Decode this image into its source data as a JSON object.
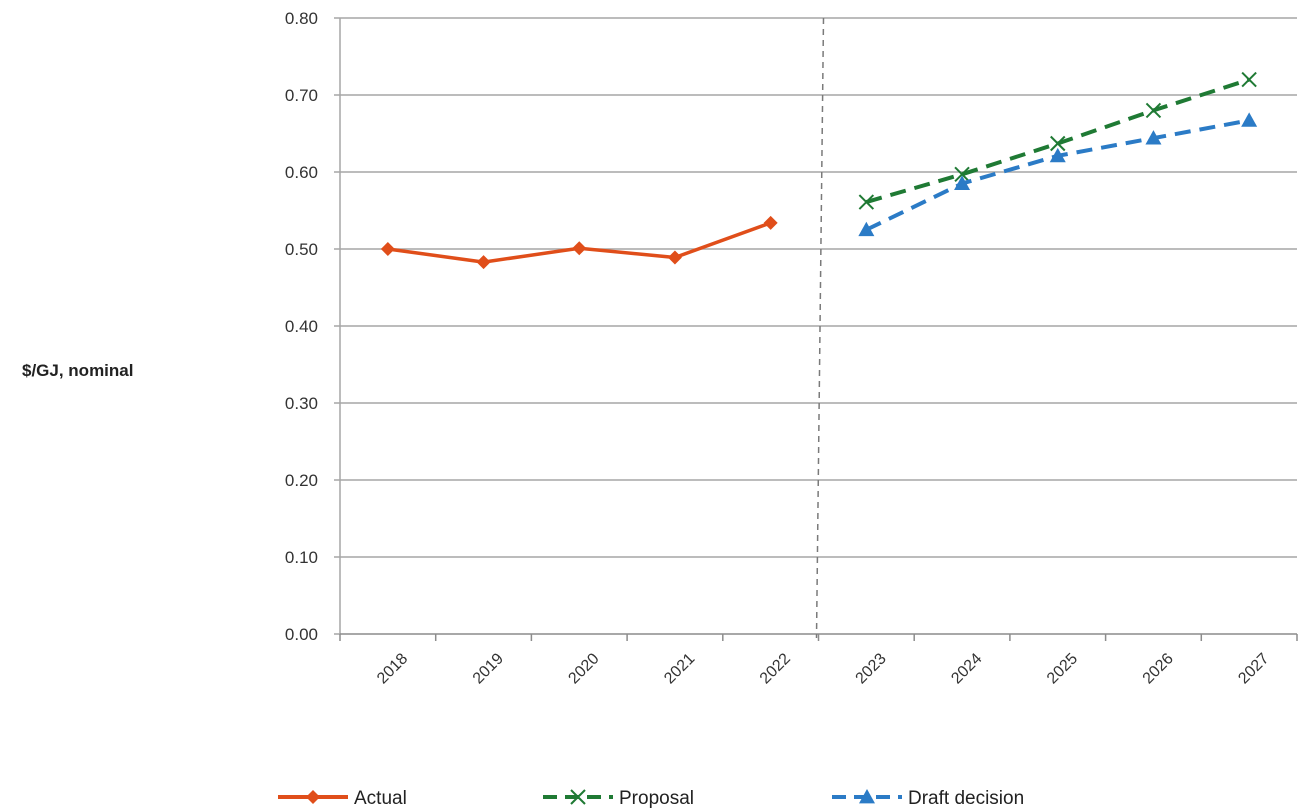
{
  "chart_data": {
    "type": "line",
    "title": "",
    "xlabel": "",
    "ylabel": "$/GJ, nominal",
    "categories": [
      "2018",
      "2019",
      "2020",
      "2021",
      "2022",
      "2023",
      "2024",
      "2025",
      "2026",
      "2027"
    ],
    "ylim": [
      0,
      0.8
    ],
    "yticks": [
      "0.00",
      "0.10",
      "0.20",
      "0.30",
      "0.40",
      "0.50",
      "0.60",
      "0.70",
      "0.80"
    ],
    "grid": "horizontal",
    "divider_between": [
      "2022",
      "2023"
    ],
    "legend_position": "bottom",
    "series": [
      {
        "name": "Actual",
        "color": "#e04e1a",
        "marker": "diamond",
        "line_style": "solid",
        "values": [
          0.5,
          0.483,
          0.501,
          0.489,
          0.534,
          null,
          null,
          null,
          null,
          null
        ]
      },
      {
        "name": "Proposal",
        "color": "#1f7a34",
        "marker": "x",
        "line_style": "dashed",
        "values": [
          null,
          null,
          null,
          null,
          null,
          0.561,
          0.597,
          0.637,
          0.68,
          0.72
        ]
      },
      {
        "name": "Draft decision",
        "color": "#2b7bc6",
        "marker": "triangle",
        "line_style": "dashed",
        "values": [
          null,
          null,
          null,
          null,
          null,
          0.525,
          0.585,
          0.621,
          0.644,
          0.667
        ]
      }
    ]
  }
}
